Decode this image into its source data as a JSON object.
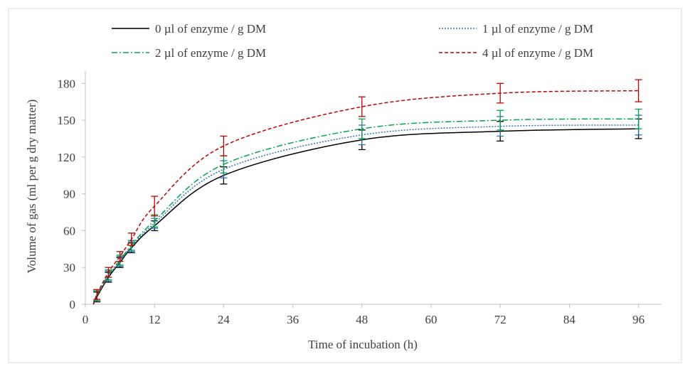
{
  "chart_data": {
    "type": "line",
    "xlabel": "Time of incubation (h)",
    "ylabel": "Volume of gas (ml per g dry matter)",
    "xlim": [
      0,
      100
    ],
    "ylim": [
      0,
      190
    ],
    "x_ticks": [
      0,
      12,
      24,
      36,
      48,
      60,
      72,
      84,
      96
    ],
    "y_ticks": [
      0,
      30,
      60,
      90,
      120,
      150,
      180
    ],
    "x": [
      2,
      4,
      6,
      8,
      12,
      24,
      48,
      72,
      96
    ],
    "grid": false,
    "legend_position": "top",
    "series": [
      {
        "name": "0 µl of enzyme / g DM",
        "color": "#000000",
        "dash": "solid",
        "values": [
          6,
          22,
          34,
          46,
          64,
          105,
          134,
          141,
          143
        ],
        "error": [
          4,
          4,
          4,
          4,
          4,
          7,
          8,
          8,
          8
        ]
      },
      {
        "name": "1 µl of enzyme / g DM",
        "color": "#2e75b6",
        "dash": "dotted",
        "values": [
          7,
          23,
          35,
          47,
          66,
          110,
          138,
          145,
          146
        ],
        "error": [
          4,
          4,
          4,
          4,
          4,
          7,
          8,
          8,
          8
        ]
      },
      {
        "name": "2 µl of enzyme / g DM",
        "color": "#00a550",
        "dash": "dashdot",
        "values": [
          7,
          24,
          36,
          48,
          68,
          114,
          143,
          150,
          151
        ],
        "error": [
          4,
          4,
          4,
          4,
          5,
          7,
          8,
          8,
          8
        ]
      },
      {
        "name": "4 µl of enzyme / g DM",
        "color": "#c00000",
        "dash": "dashed",
        "values": [
          8,
          26,
          39,
          53,
          80,
          129,
          161,
          172,
          174
        ],
        "error": [
          4,
          4,
          4,
          5,
          8,
          8,
          8,
          8,
          9
        ]
      }
    ]
  }
}
